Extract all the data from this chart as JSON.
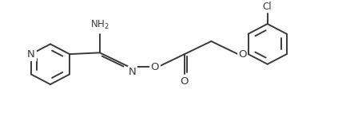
{
  "bg_color": "#ffffff",
  "line_color": "#3a3a3a",
  "line_width": 1.4,
  "font_size": 8.5,
  "figsize": [
    4.28,
    1.51
  ],
  "dpi": 100,
  "xlim": [
    0,
    428
  ],
  "ylim": [
    0,
    151
  ]
}
